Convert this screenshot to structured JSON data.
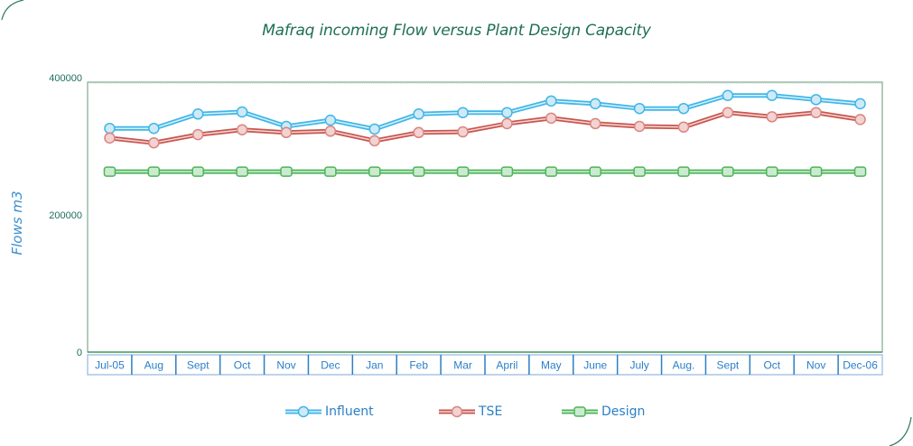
{
  "chart_data": {
    "type": "line",
    "title": "Mafraq incoming Flow versus Plant Design Capacity",
    "xlabel": "",
    "ylabel": "Flows m3",
    "ylim": [
      0,
      400000
    ],
    "yticks": [
      0,
      200000,
      400000
    ],
    "ytick_labels": [
      "0",
      "200000",
      "400000"
    ],
    "grid": false,
    "legend_position": "bottom",
    "categories": [
      "Jul-05",
      "Aug",
      "Sept",
      "Oct",
      "Nov",
      "Dec",
      "Jan",
      "Feb",
      "Mar",
      "April",
      "May",
      "June",
      "July",
      "Aug.",
      "Sept",
      "Oct",
      "Nov",
      "Dec-06"
    ],
    "series": [
      {
        "name": "Influent",
        "color": "#3fb6e8",
        "marker": "circle",
        "values": [
          326000,
          326000,
          347000,
          350000,
          329000,
          338000,
          325000,
          347000,
          349000,
          349000,
          366000,
          362000,
          355000,
          355000,
          374000,
          374000,
          368000,
          362000
        ]
      },
      {
        "name": "TSE",
        "color": "#c9554f",
        "marker": "circle",
        "values": [
          312000,
          305000,
          317000,
          324000,
          320000,
          322000,
          308000,
          320000,
          321000,
          333000,
          341000,
          333000,
          329000,
          328000,
          349000,
          343000,
          349000,
          339000
        ]
      },
      {
        "name": "Design",
        "color": "#4cb55a",
        "marker": "square",
        "values": [
          263000,
          263000,
          263000,
          263000,
          263000,
          263000,
          263000,
          263000,
          263000,
          263000,
          263000,
          263000,
          263000,
          263000,
          263000,
          263000,
          263000,
          263000
        ]
      }
    ]
  },
  "colors": {
    "title": "#1f6f54",
    "axis_frame": "#7ea98f",
    "category_box_border": "#2a7fc6",
    "ylabel": "#3a8fd0"
  }
}
